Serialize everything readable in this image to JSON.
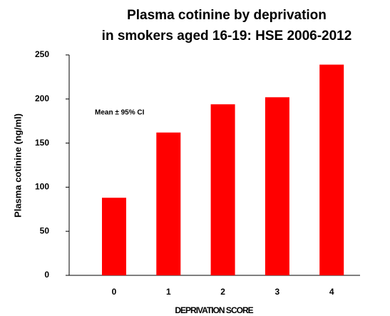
{
  "chart_data": {
    "type": "bar",
    "title": [
      "Plasma cotinine by deprivation",
      "in smokers aged 16-19: HSE 2006-2012"
    ],
    "y_label": "Plasma cotinine (ng/ml)",
    "x_label": "DEPRIVATION SCORE",
    "annotation": "Mean ± 95% CI",
    "categories": [
      "0",
      "1",
      "2",
      "3",
      "4"
    ],
    "values": [
      88,
      162,
      194,
      202,
      239
    ],
    "color": "#ff0000",
    "ylim": [
      0,
      250
    ],
    "yticks": [
      0,
      50,
      100,
      150,
      200,
      250
    ],
    "grid": false
  }
}
